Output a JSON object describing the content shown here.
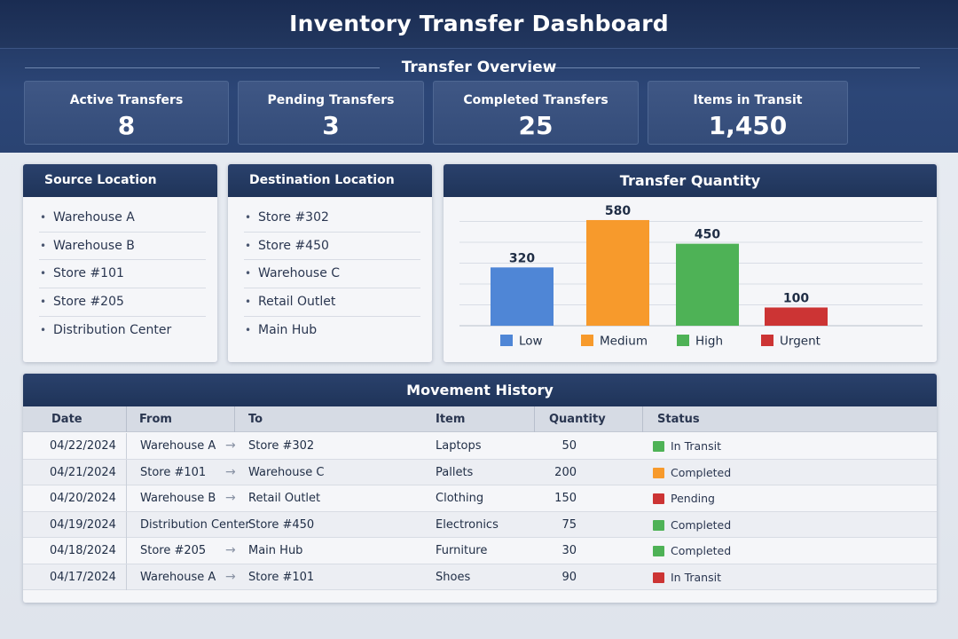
{
  "app": {
    "title": "Inventory Transfer Dashboard"
  },
  "overview": {
    "title": "Transfer Overview",
    "kpis": [
      {
        "label": "Active Transfers",
        "value": "8"
      },
      {
        "label": "Pending Transfers",
        "value": "3"
      },
      {
        "label": "Completed Transfers",
        "value": "25"
      },
      {
        "label": "Items in Transit",
        "value": "1,450"
      }
    ]
  },
  "source": {
    "title": "Source Location",
    "items": [
      "Warehouse A",
      "Warehouse B",
      "Store #101",
      "Store #205",
      "Distribution Center"
    ]
  },
  "destination": {
    "title": "Destination Location",
    "items": [
      "Store #302",
      "Store #450",
      "Warehouse C",
      "Retail Outlet",
      "Main Hub"
    ]
  },
  "chart_data": {
    "type": "bar",
    "title": "Transfer Quantity",
    "categories": [
      "Low",
      "Medium",
      "High",
      "Urgent"
    ],
    "values": [
      320,
      580,
      450,
      100
    ],
    "data_labels": [
      "320",
      "580",
      "450",
      "100"
    ],
    "colors": [
      "#4f86d6",
      "#f79a2c",
      "#4eb256",
      "#cc3434"
    ],
    "ylim": [
      0,
      600
    ],
    "grid": true,
    "legend": "bottom",
    "xlabel": "",
    "ylabel": ""
  },
  "history": {
    "title": "Movement History",
    "columns": [
      "Date",
      "From",
      "To",
      "Item",
      "Quantity",
      "Status"
    ],
    "rows": [
      {
        "date": "04/22/2024",
        "from": "Warehouse A",
        "to": "Store #302",
        "item": "Laptops",
        "qty": "50",
        "status": "In Transit",
        "status_color": "#4eb256"
      },
      {
        "date": "04/21/2024",
        "from": "Store #101",
        "to": "Warehouse C",
        "item": "Pallets",
        "qty": "200",
        "status": "Completed",
        "status_color": "#f79a2c"
      },
      {
        "date": "04/20/2024",
        "from": "Warehouse B",
        "to": "Retail Outlet",
        "item": "Clothing",
        "qty": "150",
        "status": "Pending",
        "status_color": "#cc3434"
      },
      {
        "date": "04/19/2024",
        "from": "Distribution Center",
        "to": "Store #450",
        "item": "Electronics",
        "qty": "75",
        "status": "Completed",
        "status_color": "#4eb256"
      },
      {
        "date": "04/18/2024",
        "from": "Store #205",
        "to": "Main Hub",
        "item": "Furniture",
        "qty": "30",
        "status": "Completed",
        "status_color": "#4eb256"
      },
      {
        "date": "04/17/2024",
        "from": "Warehouse A",
        "to": "Store #101",
        "item": "Shoes",
        "qty": "90",
        "status": "In Transit",
        "status_color": "#cc3434"
      }
    ]
  }
}
